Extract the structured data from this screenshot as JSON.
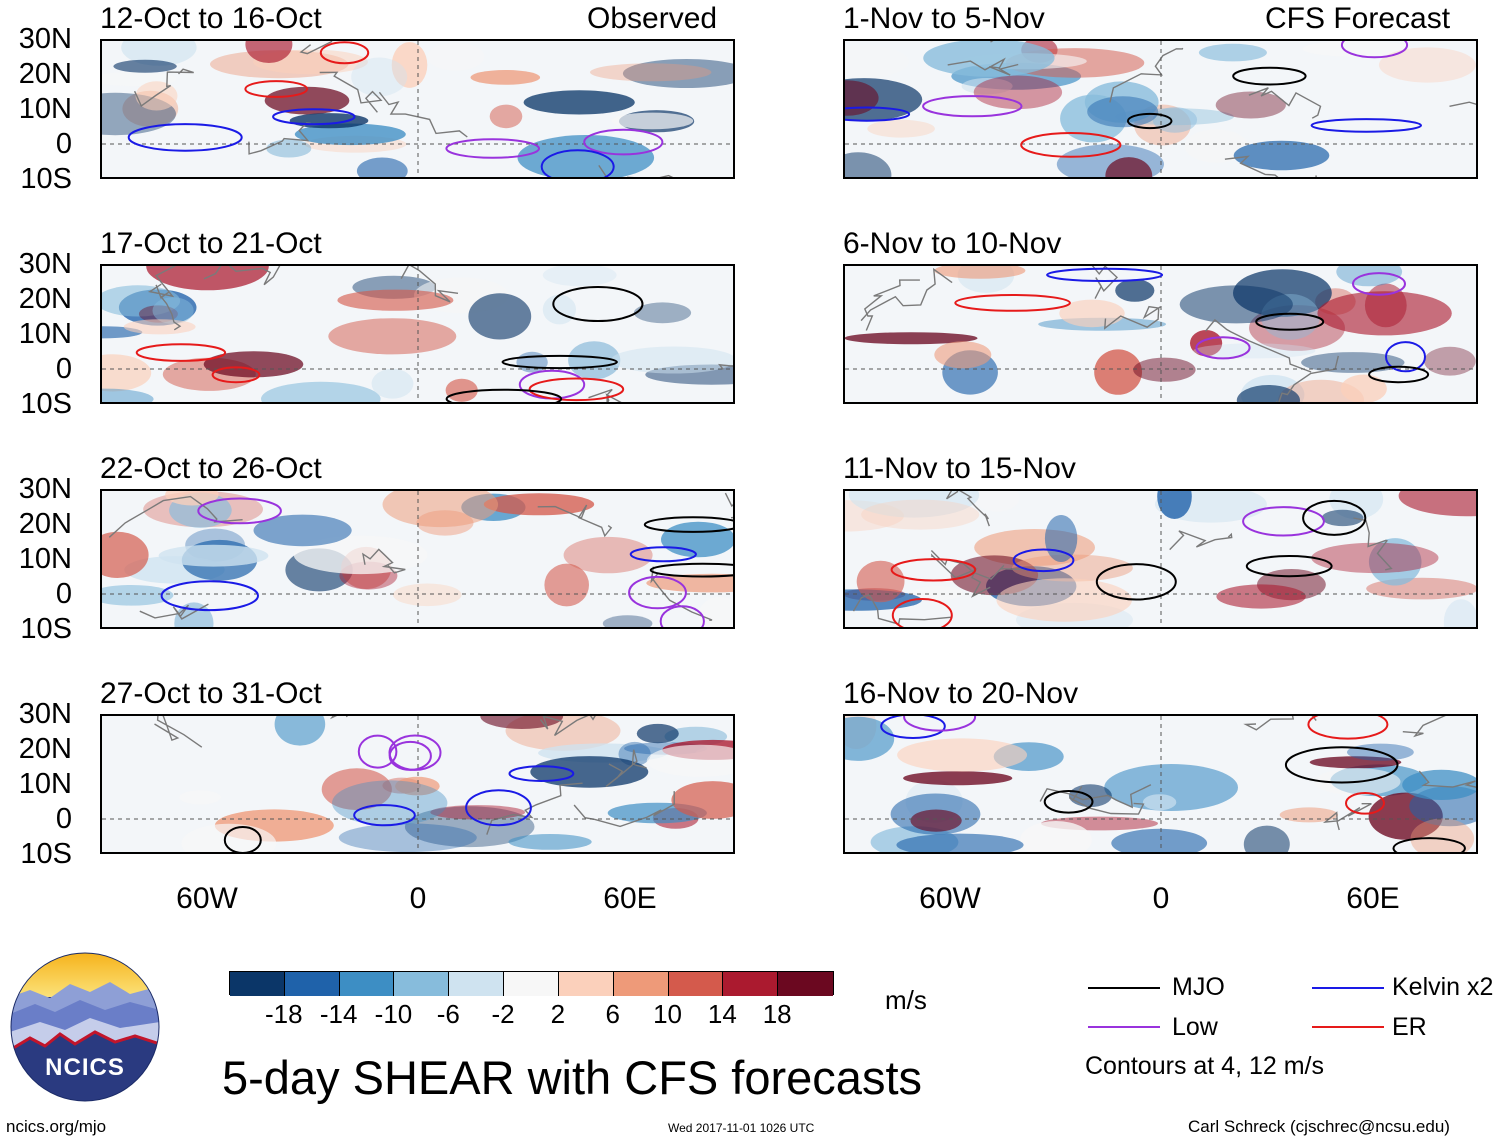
{
  "left_header": "Observed",
  "right_header": "CFS Forecast",
  "panels_left": [
    "12-Oct to 16-Oct",
    "17-Oct to 21-Oct",
    "22-Oct to 26-Oct",
    "27-Oct to 31-Oct"
  ],
  "panels_right": [
    "1-Nov to 5-Nov",
    "6-Nov to 10-Nov",
    "11-Nov to 15-Nov",
    "16-Nov to 20-Nov"
  ],
  "lat_labels": [
    "30N",
    "20N",
    "10N",
    "0",
    "10S"
  ],
  "lon_labels": [
    "60W",
    "0",
    "60E"
  ],
  "colorbar": {
    "colors": [
      "#0b3668",
      "#1f62aa",
      "#3d8ec4",
      "#87bcdc",
      "#cfe3f0",
      "#f7f7f7",
      "#fbd0bb",
      "#ee9a79",
      "#d45a4c",
      "#ab1a2f",
      "#6b0820"
    ],
    "labels": [
      "-18",
      "-14",
      "-10",
      "-6",
      "-2",
      "2",
      "6",
      "10",
      "14",
      "18"
    ],
    "units": "m/s"
  },
  "legend": {
    "items": [
      {
        "label": "MJO",
        "color": "#000000"
      },
      {
        "label": "Kelvin x2",
        "color": "#1a1ae6"
      },
      {
        "label": "Low",
        "color": "#9933dd"
      },
      {
        "label": "ER",
        "color": "#e61a1a"
      }
    ],
    "note": "Contours at 4, 12 m/s"
  },
  "logo_text": "NCICS",
  "main_title": "5-day SHEAR with CFS forecasts",
  "footer_left": "ncics.org/mjo",
  "footer_center": "Wed 2017-11-01 1026 UTC",
  "footer_right": "Carl Schreck (cjschrec@ncsu.edu)"
}
